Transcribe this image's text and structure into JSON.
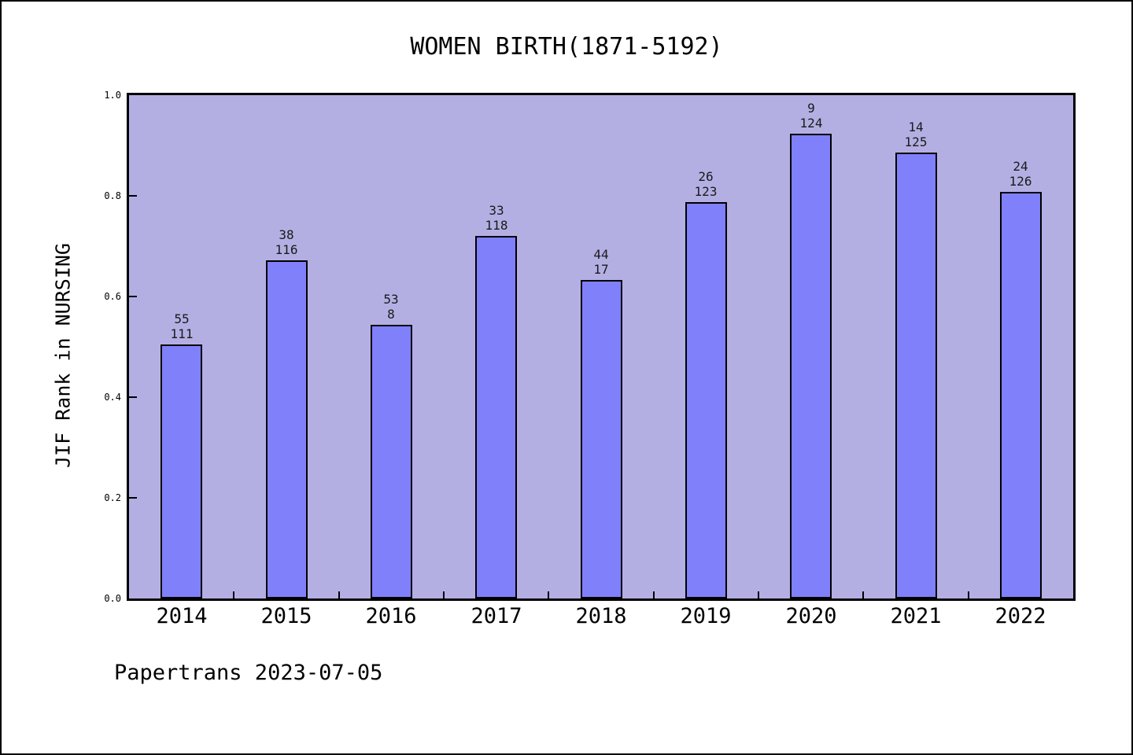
{
  "colors": {
    "bar_fill": "#8080fa",
    "bar_border": "#000000",
    "plot_bg": "#b4afe3",
    "figure_bg": "#ffffff",
    "label_color": "#1a1a1a"
  },
  "chart_data": {
    "type": "bar",
    "title": "WOMEN BIRTH(1871-5192)",
    "ylabel": "JIF Rank in NURSING",
    "xlabel": "",
    "categories": [
      "2014",
      "2015",
      "2016",
      "2017",
      "2018",
      "2019",
      "2020",
      "2021",
      "2022"
    ],
    "values": [
      0.505,
      0.672,
      0.544,
      0.72,
      0.633,
      0.787,
      0.924,
      0.886,
      0.808
    ],
    "bar_labels": [
      [
        "55",
        "111"
      ],
      [
        "38",
        "116"
      ],
      [
        "53",
        "8"
      ],
      [
        "33",
        "118"
      ],
      [
        "44",
        "17"
      ],
      [
        "26",
        "123"
      ],
      [
        "9",
        "124"
      ],
      [
        "14",
        "125"
      ],
      [
        "24",
        "126"
      ]
    ],
    "ylim": [
      0.0,
      1.0
    ],
    "yticks": [
      "0.0",
      "0.2",
      "0.4",
      "0.6",
      "0.8",
      "1.0"
    ],
    "grid": false,
    "legend": "none",
    "annotation": "Papertrans 2023-07-05"
  }
}
